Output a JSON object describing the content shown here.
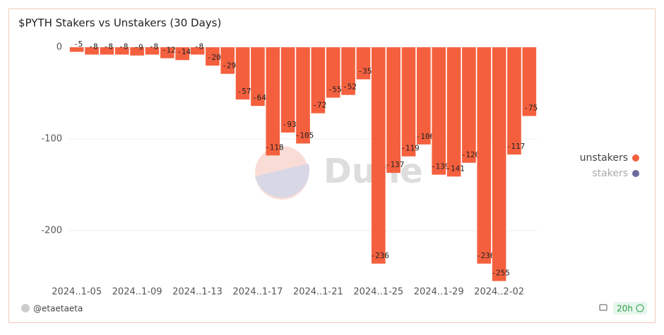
{
  "chart_data": {
    "type": "bar",
    "title": "$PYTH Stakers vs Unstakers (30 Days)",
    "categories": [
      "2024..1-05",
      null,
      null,
      null,
      "2024..1-09",
      null,
      null,
      null,
      "2024..1-13",
      null,
      null,
      null,
      "2024..1-17",
      null,
      null,
      null,
      "2024..1-21",
      null,
      null,
      null,
      "2024..1-25",
      null,
      null,
      null,
      "2024..1-29",
      null,
      null,
      null,
      "2024..2-02",
      null,
      null
    ],
    "values": [
      -5,
      -8,
      -8,
      -8,
      -9,
      -8,
      -12,
      -14,
      -8,
      -20,
      -29,
      -57,
      -64,
      -118,
      -93,
      -105,
      -72,
      -55,
      -52,
      -35,
      -236,
      -137,
      -119,
      -106,
      -139,
      -141,
      -126,
      -236,
      -255,
      -117,
      -75
    ],
    "color": "#f4603e",
    "ylim": [
      -260,
      0
    ],
    "yticks": [
      -200,
      -100,
      0
    ],
    "grid": true,
    "legend": [
      {
        "name": "unstakers",
        "color": "#f4603e"
      },
      {
        "name": "stakers",
        "color": "#6b6b9e",
        "dimmed": true
      }
    ],
    "legend_position": "right",
    "watermark": "Dune",
    "author": "@etaetaeta",
    "refresh": "20h"
  }
}
